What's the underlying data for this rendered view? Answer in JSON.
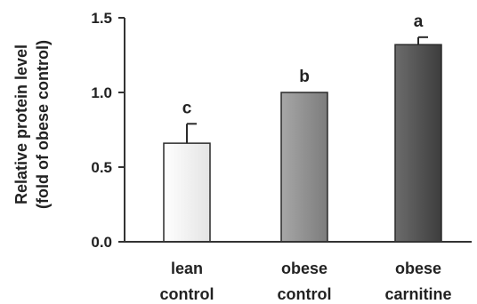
{
  "chart_data": {
    "type": "bar",
    "title": "",
    "xlabel": "",
    "ylabel": [
      "Relative protein level",
      "(fold of obese control)"
    ],
    "ylim": [
      0,
      1.5
    ],
    "yticks": [
      "0.0",
      "0.5",
      "1.0",
      "1.5"
    ],
    "grid": false,
    "categories": [
      [
        "lean",
        "control"
      ],
      [
        "obese",
        "control"
      ],
      [
        "obese",
        "carnitine"
      ]
    ],
    "values": [
      0.66,
      1.0,
      1.32
    ],
    "errors": [
      0.13,
      0.0,
      0.05
    ],
    "annotations": [
      "c",
      "b",
      "a"
    ],
    "colors": {
      "bar_lean": "#efefef",
      "bar_obese": "#8d8d8d",
      "bar_carnitine": "#4f4f4f",
      "axis": "#333333",
      "text": "#222222"
    }
  }
}
